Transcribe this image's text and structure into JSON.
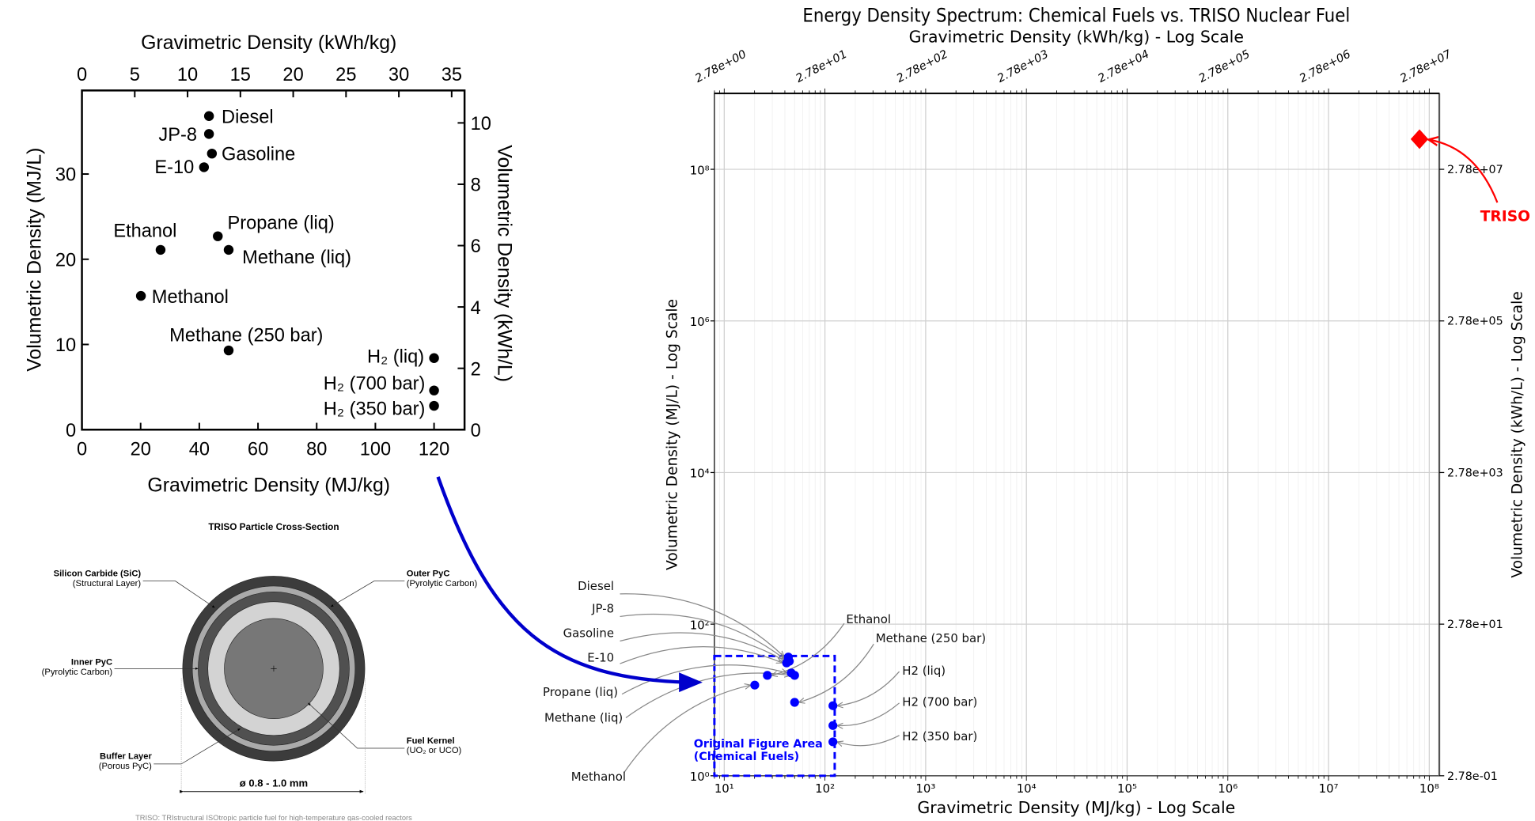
{
  "chart_data": [
    {
      "type": "scatter",
      "xlabel": "Gravimetric Density (MJ/kg)",
      "ylabel": "Volumetric Density (MJ/L)",
      "x2label": "Gravimetric Density (kWh/kg)",
      "y2label": "Volumetric Density (kWh/L)",
      "xlim": [
        0,
        130
      ],
      "ylim": [
        0,
        40
      ],
      "x_ticks": [
        "0",
        "20",
        "40",
        "60",
        "80",
        "100",
        "120"
      ],
      "y_ticks": [
        "0",
        "10",
        "20",
        "30"
      ],
      "x2_ticks": [
        "0",
        "5",
        "10",
        "15",
        "20",
        "25",
        "30",
        "35"
      ],
      "y2_ticks": [
        "0",
        "2",
        "4",
        "6",
        "8",
        "10"
      ],
      "grid": false,
      "points": [
        {
          "label": "Diesel",
          "x": 43.3,
          "y": 36.8
        },
        {
          "label": "JP-8",
          "x": 43.3,
          "y": 34.7
        },
        {
          "label": "Gasoline",
          "x": 44.3,
          "y": 32.4
        },
        {
          "label": "E-10",
          "x": 41.6,
          "y": 30.8
        },
        {
          "label": "Ethanol",
          "x": 26.8,
          "y": 21.1
        },
        {
          "label": "Propane (liq)",
          "x": 46.3,
          "y": 22.7
        },
        {
          "label": "Methane (liq)",
          "x": 50.0,
          "y": 21.1
        },
        {
          "label": "Methanol",
          "x": 20.1,
          "y": 15.7
        },
        {
          "label": "Methane (250 bar)",
          "x": 50.0,
          "y": 9.3
        },
        {
          "label": "H₂ (liq)",
          "x": 120,
          "y": 8.4
        },
        {
          "label": "H₂ (700 bar)",
          "x": 120,
          "y": 4.6
        },
        {
          "label": "H₂ (350 bar)",
          "x": 120,
          "y": 2.8
        }
      ]
    },
    {
      "type": "scatter",
      "title": "Energy Density Spectrum: Chemical Fuels vs. TRISO Nuclear Fuel",
      "xlabel": "Gravimetric Density (MJ/kg) - Log Scale",
      "ylabel": "Volumetric Density (MJ/L) - Log Scale",
      "x2label": "Gravimetric Density (kWh/kg) - Log Scale",
      "y2label": "Volumetric Density (kWh/L) - Log Scale",
      "x_scale": "log",
      "y_scale": "log",
      "xlim": [
        8,
        120000000.0
      ],
      "ylim": [
        1,
        950000000.0
      ],
      "x_ticks": [
        "10¹",
        "10²",
        "10³",
        "10⁴",
        "10⁵",
        "10⁶",
        "10⁷",
        "10⁸"
      ],
      "y_ticks": [
        "10⁰",
        "10²",
        "10⁴",
        "10⁶",
        "10⁸"
      ],
      "x2_ticks": [
        "2.78e+00",
        "2.78e+01",
        "2.78e+02",
        "2.78e+03",
        "2.78e+04",
        "2.78e+05",
        "2.78e+06",
        "2.78e+07"
      ],
      "y2_ticks": [
        "2.78e-01",
        "2.78e+01",
        "2.78e+03",
        "2.78e+05",
        "2.78e+07"
      ],
      "grid": true,
      "series": [
        {
          "color": "#0000ff",
          "marker": "circle",
          "points": [
            {
              "label": "Diesel",
              "x": 43.3,
              "y": 36.8
            },
            {
              "label": "JP-8",
              "x": 43.3,
              "y": 34.7
            },
            {
              "label": "Gasoline",
              "x": 44.3,
              "y": 32.4
            },
            {
              "label": "E-10",
              "x": 41.6,
              "y": 30.8
            },
            {
              "label": "Ethanol",
              "x": 26.8,
              "y": 21.1
            },
            {
              "label": "Propane (liq)",
              "x": 46.3,
              "y": 22.7
            },
            {
              "label": "Methane (liq)",
              "x": 50.0,
              "y": 21.1
            },
            {
              "label": "Methanol",
              "x": 20.1,
              "y": 15.7
            },
            {
              "label": "Methane (250 bar)",
              "x": 50.0,
              "y": 9.3
            },
            {
              "label": "H2 (liq)",
              "x": 120,
              "y": 8.4
            },
            {
              "label": "H2 (700 bar)",
              "x": 120,
              "y": 4.6
            },
            {
              "label": "H2 (350 bar)",
              "x": 120,
              "y": 2.8
            }
          ]
        },
        {
          "color": "#ff0000",
          "marker": "diamond",
          "points": [
            {
              "label": "TRISO",
              "x": 80000000.0,
              "y": 250000000.0
            }
          ]
        }
      ],
      "region": {
        "label_line1": "Original Figure Area",
        "label_line2": "(Chemical Fuels)",
        "x": [
          8,
          125
        ],
        "y": [
          1,
          38
        ],
        "color": "#0000ff"
      }
    }
  ],
  "diagram": {
    "title": "TRISO Particle Cross-Section",
    "layers": [
      {
        "name": "Silicon Carbide (SiC)",
        "sub": "(Structural Layer)"
      },
      {
        "name": "Outer PyC",
        "sub": "(Pyrolytic Carbon)"
      },
      {
        "name": "Inner PyC",
        "sub": "(Pyrolytic Carbon)"
      },
      {
        "name": "Buffer Layer",
        "sub": "(Porous PyC)"
      },
      {
        "name": "Fuel Kernel",
        "sub": "(UO₂ or UCO)"
      }
    ],
    "dimension": "ø 0.8 - 1.0 mm",
    "footnote": "TRISO: TRIstructural ISOtropic particle fuel for high-temperature gas-cooled reactors",
    "colors": {
      "outer": "#3c3c3c",
      "sic": "#aaaaaa",
      "inner": "#505050",
      "buffer": "#d3d3d3",
      "kernel": "#777777"
    }
  },
  "connector": {
    "color": "#0000cc"
  }
}
